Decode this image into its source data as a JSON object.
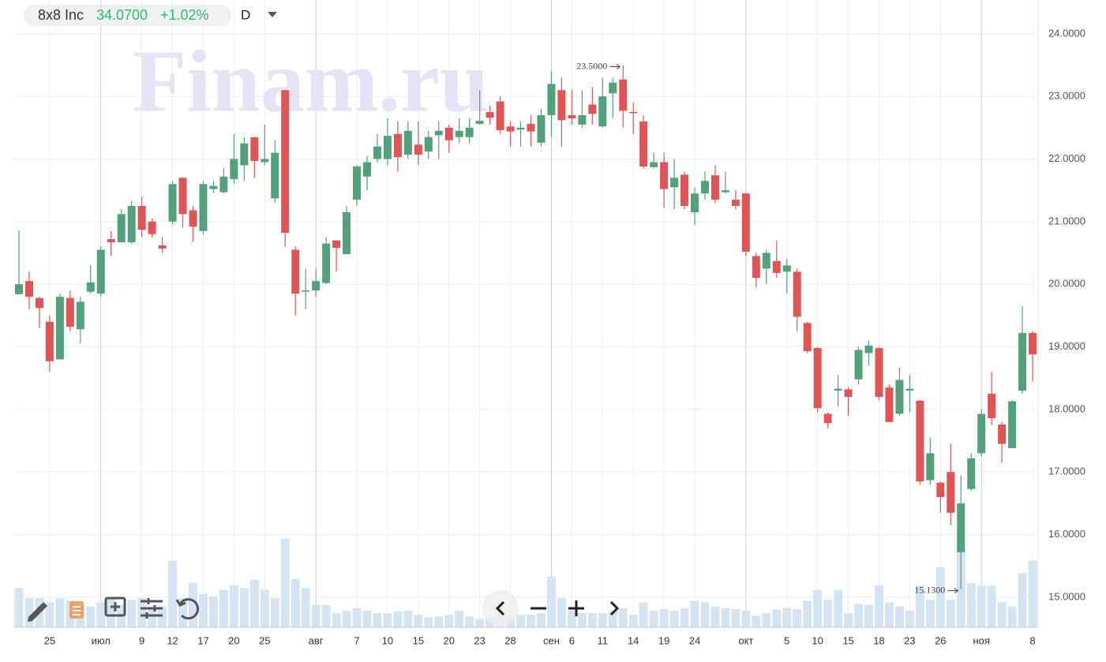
{
  "chart_data": {
    "type": "candlestick",
    "title": "8x8 Inc",
    "price": "34.0700",
    "change": "+1.02%",
    "interval": "D",
    "watermark": "Finam.ru",
    "annotations": {
      "high": "23.5000",
      "low": "15.1300"
    },
    "up_color": "#53a17a",
    "down_color": "#e05455",
    "volume_color": "#d5e4f3",
    "grid": true,
    "categories": [
      null,
      null,
      null,
      "25",
      null,
      null,
      null,
      null,
      "июл",
      null,
      null,
      null,
      "9",
      null,
      null,
      "12",
      null,
      null,
      "17",
      null,
      null,
      "20",
      null,
      null,
      "25",
      null,
      null,
      null,
      null,
      "авг",
      null,
      null,
      null,
      "7",
      null,
      null,
      "10",
      null,
      null,
      "15",
      null,
      null,
      "20",
      null,
      null,
      "23",
      null,
      null,
      "28",
      null,
      null,
      null,
      "сен",
      null,
      "6",
      null,
      null,
      "11",
      null,
      null,
      "14",
      null,
      null,
      "19",
      null,
      null,
      "24",
      null,
      null,
      null,
      null,
      "окт",
      null,
      null,
      null,
      "5",
      null,
      null,
      "10",
      null,
      null,
      "15",
      null,
      null,
      "18",
      null,
      null,
      "23",
      null,
      null,
      "26",
      null,
      null,
      null,
      "ноя",
      null,
      null,
      null,
      null,
      "8"
    ],
    "open": [
      19.84,
      20.05,
      19.78,
      19.4,
      18.8,
      19.78,
      19.28,
      19.88,
      19.85,
      20.72,
      20.67,
      20.67,
      21.25,
      21.0,
      20.62,
      21.0,
      21.7,
      21.18,
      20.85,
      21.52,
      21.47,
      21.68,
      21.9,
      22.35,
      21.95,
      21.37,
      23.1,
      20.55,
      19.88,
      19.9,
      20.02,
      20.7,
      20.48,
      21.35,
      21.72,
      22.0,
      22.0,
      22.4,
      22.07,
      22.23,
      22.12,
      22.38,
      22.5,
      22.35,
      22.35,
      22.56,
      22.75,
      22.92,
      22.52,
      22.47,
      22.56,
      22.26,
      22.7,
      23.1,
      22.7,
      22.55,
      22.87,
      22.52,
      23.05,
      23.27,
      22.75,
      22.6,
      21.87,
      21.95,
      21.55,
      21.75,
      21.15,
      21.45,
      21.74,
      21.47,
      21.35,
      21.45,
      20.45,
      20.25,
      20.37,
      20.2,
      20.2,
      19.38,
      18.98,
      17.93,
      18.3,
      18.32,
      18.48,
      18.9,
      18.98,
      18.35,
      17.93,
      18.3,
      18.14,
      16.87,
      16.83,
      17.0,
      15.72,
      16.73,
      17.3,
      18.25,
      17.76,
      17.38,
      18.3,
      19.22
    ],
    "high": [
      20.86,
      20.2,
      19.8,
      19.5,
      19.85,
      19.9,
      19.8,
      20.3,
      20.6,
      20.85,
      21.2,
      21.33,
      21.4,
      21.05,
      20.75,
      21.65,
      21.7,
      21.25,
      21.65,
      21.65,
      21.85,
      22.4,
      22.35,
      22.35,
      22.55,
      22.3,
      23.1,
      20.6,
      20.25,
      20.25,
      20.75,
      20.7,
      21.25,
      21.9,
      22.05,
      22.4,
      22.65,
      22.6,
      22.6,
      22.6,
      22.45,
      22.6,
      22.55,
      22.65,
      22.65,
      23.1,
      22.85,
      23.0,
      22.6,
      22.6,
      22.7,
      22.8,
      23.4,
      23.3,
      23.1,
      23.1,
      23.15,
      23.3,
      23.3,
      23.5,
      22.9,
      22.7,
      22.1,
      22.1,
      22.0,
      21.8,
      21.55,
      21.8,
      21.9,
      21.8,
      21.5,
      21.45,
      20.5,
      20.55,
      20.7,
      20.4,
      20.25,
      19.4,
      19.0,
      17.95,
      18.55,
      18.35,
      19.0,
      19.1,
      19.0,
      18.4,
      18.67,
      18.55,
      18.15,
      17.55,
      16.85,
      17.45,
      16.95,
      17.3,
      18.0,
      18.6,
      17.8,
      18.15,
      19.65,
      19.25
    ],
    "low": [
      19.84,
      19.6,
      19.3,
      18.6,
      18.8,
      19.25,
      19.05,
      19.85,
      19.8,
      20.45,
      20.67,
      20.65,
      20.75,
      20.75,
      20.5,
      20.95,
      20.9,
      20.68,
      20.8,
      21.45,
      21.45,
      21.6,
      21.65,
      21.7,
      21.9,
      21.3,
      20.6,
      19.5,
      19.6,
      19.8,
      20.0,
      20.2,
      20.48,
      21.25,
      21.5,
      21.95,
      21.9,
      21.8,
      22.0,
      21.9,
      22.0,
      22.0,
      22.1,
      22.25,
      22.25,
      22.55,
      22.55,
      22.4,
      22.2,
      22.2,
      22.2,
      22.2,
      22.35,
      22.2,
      22.55,
      22.5,
      22.55,
      22.5,
      22.65,
      22.5,
      22.4,
      21.85,
      21.85,
      21.22,
      21.2,
      21.2,
      20.95,
      21.35,
      21.3,
      21.45,
      21.2,
      20.45,
      19.95,
      20.0,
      20.1,
      19.85,
      19.25,
      18.9,
      17.95,
      17.7,
      18.05,
      17.9,
      18.4,
      18.7,
      18.15,
      17.8,
      17.9,
      17.95,
      16.8,
      16.8,
      16.35,
      16.15,
      15.13,
      16.7,
      17.25,
      17.75,
      17.15,
      17.38,
      18.25,
      18.45
    ],
    "close": [
      20.0,
      19.8,
      19.62,
      18.77,
      19.8,
      19.32,
      19.72,
      20.03,
      20.55,
      20.67,
      21.12,
      21.25,
      20.87,
      20.8,
      20.57,
      21.6,
      21.12,
      20.92,
      21.6,
      21.57,
      21.72,
      22.0,
      22.25,
      21.97,
      22.0,
      22.1,
      20.82,
      19.85,
      19.9,
      20.05,
      20.65,
      20.58,
      21.15,
      21.88,
      21.95,
      22.2,
      22.37,
      22.03,
      22.45,
      22.07,
      22.35,
      22.45,
      22.3,
      22.45,
      22.5,
      22.61,
      22.66,
      22.46,
      22.44,
      22.5,
      22.44,
      22.7,
      23.2,
      22.62,
      22.65,
      22.7,
      22.72,
      23.0,
      23.22,
      22.77,
      22.74,
      21.88,
      21.95,
      21.52,
      21.7,
      21.25,
      21.45,
      21.65,
      21.35,
      21.5,
      21.25,
      20.52,
      20.1,
      20.5,
      20.18,
      20.3,
      19.48,
      18.93,
      18.02,
      17.78,
      18.33,
      18.2,
      18.95,
      19.02,
      18.2,
      17.8,
      18.47,
      18.33,
      16.85,
      17.3,
      16.6,
      16.35,
      16.5,
      17.22,
      17.93,
      17.86,
      17.45,
      18.13,
      19.22,
      18.88
    ],
    "volume": [
      47,
      35,
      35,
      30,
      35,
      32,
      27,
      25,
      30,
      35,
      27,
      33,
      35,
      25,
      25,
      80,
      35,
      53,
      40,
      37,
      45,
      50,
      47,
      57,
      45,
      35,
      106,
      58,
      47,
      27,
      27,
      17,
      20,
      23,
      20,
      17,
      17,
      19,
      20,
      15,
      12,
      13,
      15,
      20,
      13,
      10,
      12,
      15,
      13,
      15,
      15,
      17,
      61,
      35,
      20,
      17,
      17,
      17,
      20,
      23,
      15,
      30,
      20,
      22,
      20,
      23,
      32,
      30,
      25,
      23,
      22,
      20,
      14,
      17,
      21,
      23,
      22,
      32,
      45,
      33,
      45,
      17,
      28,
      27,
      50,
      30,
      25,
      20,
      50,
      33,
      72,
      33,
      95,
      53,
      50,
      50,
      30,
      25,
      65,
      80
    ],
    "volume_lim": [
      0,
      752
    ],
    "ylim": [
      14.52,
      24.54
    ],
    "yticks": [
      {
        "value": 15,
        "label": "15.0000"
      },
      {
        "value": 16,
        "label": "16.0000"
      },
      {
        "value": 17,
        "label": "17.0000"
      },
      {
        "value": 18,
        "label": "18.0000"
      },
      {
        "value": 19,
        "label": "19.0000"
      },
      {
        "value": 20,
        "label": "20.0000"
      },
      {
        "value": 21,
        "label": "21.0000"
      },
      {
        "value": 22,
        "label": "22.0000"
      },
      {
        "value": 23,
        "label": "23.0000"
      },
      {
        "value": 24,
        "label": "24.0000"
      }
    ]
  }
}
